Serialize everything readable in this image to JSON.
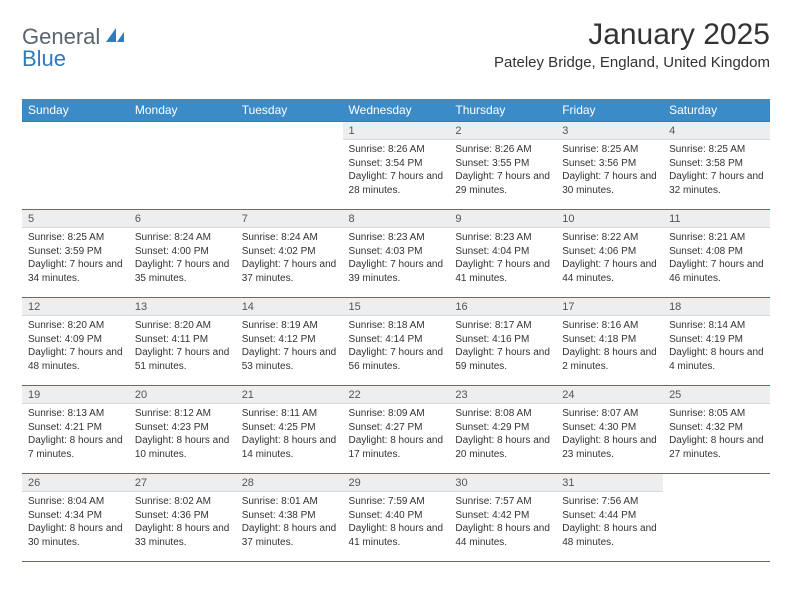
{
  "branding": {
    "word1": "General",
    "word2": "Blue",
    "word1_color": "#5a6570",
    "word2_color": "#2d7bc0",
    "icon_color": "#2d7bc0"
  },
  "title": "January 2025",
  "location": "Pateley Bridge, England, United Kingdom",
  "colors": {
    "header_bg": "#3b8bc9",
    "header_text": "#ffffff",
    "daynum_bg": "#eceef0",
    "rule": "#2d7bc0",
    "body_text": "#333333"
  },
  "typography": {
    "title_fontsize": 30,
    "location_fontsize": 15,
    "header_fontsize": 12,
    "daynum_fontsize": 11,
    "cell_fontsize": 10
  },
  "weekdays": [
    "Sunday",
    "Monday",
    "Tuesday",
    "Wednesday",
    "Thursday",
    "Friday",
    "Saturday"
  ],
  "layout": {
    "cols": 7,
    "rows": 5,
    "first_day_col": 3
  },
  "days": [
    {
      "n": 1,
      "sunrise": "8:26 AM",
      "sunset": "3:54 PM",
      "daylight": "7 hours and 28 minutes."
    },
    {
      "n": 2,
      "sunrise": "8:26 AM",
      "sunset": "3:55 PM",
      "daylight": "7 hours and 29 minutes."
    },
    {
      "n": 3,
      "sunrise": "8:25 AM",
      "sunset": "3:56 PM",
      "daylight": "7 hours and 30 minutes."
    },
    {
      "n": 4,
      "sunrise": "8:25 AM",
      "sunset": "3:58 PM",
      "daylight": "7 hours and 32 minutes."
    },
    {
      "n": 5,
      "sunrise": "8:25 AM",
      "sunset": "3:59 PM",
      "daylight": "7 hours and 34 minutes."
    },
    {
      "n": 6,
      "sunrise": "8:24 AM",
      "sunset": "4:00 PM",
      "daylight": "7 hours and 35 minutes."
    },
    {
      "n": 7,
      "sunrise": "8:24 AM",
      "sunset": "4:02 PM",
      "daylight": "7 hours and 37 minutes."
    },
    {
      "n": 8,
      "sunrise": "8:23 AM",
      "sunset": "4:03 PM",
      "daylight": "7 hours and 39 minutes."
    },
    {
      "n": 9,
      "sunrise": "8:23 AM",
      "sunset": "4:04 PM",
      "daylight": "7 hours and 41 minutes."
    },
    {
      "n": 10,
      "sunrise": "8:22 AM",
      "sunset": "4:06 PM",
      "daylight": "7 hours and 44 minutes."
    },
    {
      "n": 11,
      "sunrise": "8:21 AM",
      "sunset": "4:08 PM",
      "daylight": "7 hours and 46 minutes."
    },
    {
      "n": 12,
      "sunrise": "8:20 AM",
      "sunset": "4:09 PM",
      "daylight": "7 hours and 48 minutes."
    },
    {
      "n": 13,
      "sunrise": "8:20 AM",
      "sunset": "4:11 PM",
      "daylight": "7 hours and 51 minutes."
    },
    {
      "n": 14,
      "sunrise": "8:19 AM",
      "sunset": "4:12 PM",
      "daylight": "7 hours and 53 minutes."
    },
    {
      "n": 15,
      "sunrise": "8:18 AM",
      "sunset": "4:14 PM",
      "daylight": "7 hours and 56 minutes."
    },
    {
      "n": 16,
      "sunrise": "8:17 AM",
      "sunset": "4:16 PM",
      "daylight": "7 hours and 59 minutes."
    },
    {
      "n": 17,
      "sunrise": "8:16 AM",
      "sunset": "4:18 PM",
      "daylight": "8 hours and 2 minutes."
    },
    {
      "n": 18,
      "sunrise": "8:14 AM",
      "sunset": "4:19 PM",
      "daylight": "8 hours and 4 minutes."
    },
    {
      "n": 19,
      "sunrise": "8:13 AM",
      "sunset": "4:21 PM",
      "daylight": "8 hours and 7 minutes."
    },
    {
      "n": 20,
      "sunrise": "8:12 AM",
      "sunset": "4:23 PM",
      "daylight": "8 hours and 10 minutes."
    },
    {
      "n": 21,
      "sunrise": "8:11 AM",
      "sunset": "4:25 PM",
      "daylight": "8 hours and 14 minutes."
    },
    {
      "n": 22,
      "sunrise": "8:09 AM",
      "sunset": "4:27 PM",
      "daylight": "8 hours and 17 minutes."
    },
    {
      "n": 23,
      "sunrise": "8:08 AM",
      "sunset": "4:29 PM",
      "daylight": "8 hours and 20 minutes."
    },
    {
      "n": 24,
      "sunrise": "8:07 AM",
      "sunset": "4:30 PM",
      "daylight": "8 hours and 23 minutes."
    },
    {
      "n": 25,
      "sunrise": "8:05 AM",
      "sunset": "4:32 PM",
      "daylight": "8 hours and 27 minutes."
    },
    {
      "n": 26,
      "sunrise": "8:04 AM",
      "sunset": "4:34 PM",
      "daylight": "8 hours and 30 minutes."
    },
    {
      "n": 27,
      "sunrise": "8:02 AM",
      "sunset": "4:36 PM",
      "daylight": "8 hours and 33 minutes."
    },
    {
      "n": 28,
      "sunrise": "8:01 AM",
      "sunset": "4:38 PM",
      "daylight": "8 hours and 37 minutes."
    },
    {
      "n": 29,
      "sunrise": "7:59 AM",
      "sunset": "4:40 PM",
      "daylight": "8 hours and 41 minutes."
    },
    {
      "n": 30,
      "sunrise": "7:57 AM",
      "sunset": "4:42 PM",
      "daylight": "8 hours and 44 minutes."
    },
    {
      "n": 31,
      "sunrise": "7:56 AM",
      "sunset": "4:44 PM",
      "daylight": "8 hours and 48 minutes."
    }
  ],
  "labels": {
    "sunrise": "Sunrise:",
    "sunset": "Sunset:",
    "daylight": "Daylight:"
  }
}
